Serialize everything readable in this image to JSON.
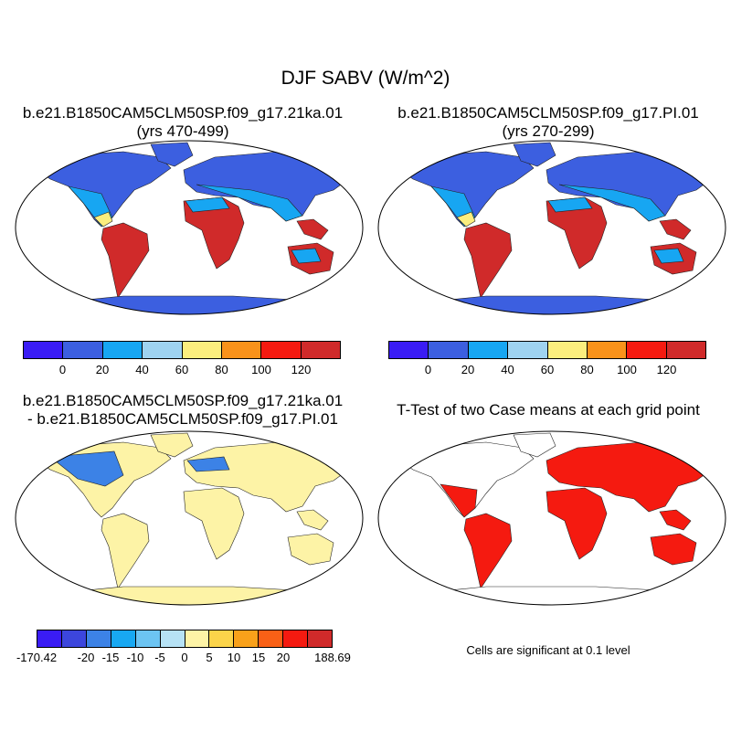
{
  "title": "DJF SABV (W/m^2)",
  "panels": {
    "top_left": {
      "line1": "b.e21.B1850CAM5CLM50SP.f09_g17.21ka.01",
      "line2": "(yrs 470-499)"
    },
    "top_right": {
      "line1": "b.e21.B1850CAM5CLM50SP.f09_g17.PI.01",
      "line2": "(yrs 270-299)"
    },
    "bottom_left": {
      "line1": "b.e21.B1850CAM5CLM50SP.f09_g17.21ka.01",
      "line2": "- b.e21.B1850CAM5CLM50SP.f09_g17.PI.01"
    },
    "bottom_right": {
      "line1": "T-Test of two Case means at each grid point"
    }
  },
  "colorbar_abs": {
    "labels": [
      "0",
      "20",
      "40",
      "60",
      "80",
      "100",
      "120"
    ],
    "colors": [
      "#3a1cf5",
      "#3c5fe0",
      "#17a6f2",
      "#9fd3f0",
      "#fbee7e",
      "#f9921a",
      "#f51a10",
      "#d02a2a"
    ]
  },
  "colorbar_diff": {
    "labels": [
      "-170.42",
      "-20",
      "-15",
      "-10",
      "-5",
      "0",
      "5",
      "10",
      "15",
      "20",
      "188.69"
    ],
    "colors": [
      "#3a1cf5",
      "#3c46dd",
      "#3c82e6",
      "#18a8f2",
      "#6cc4f2",
      "#b6e2f5",
      "#fdf3a6",
      "#fbd44a",
      "#f9a11a",
      "#f96016",
      "#f51a10",
      "#d02a2a"
    ]
  },
  "significance_note": "Cells are significant at 0.1 level",
  "map_colors": {
    "ocean": "#ffffff",
    "high_lat": "#3c5fe0",
    "mid_lat": "#17a6f2",
    "subtropic": "#fbee7e",
    "tropic": "#d02a2a",
    "diff_neutral": "#fdf3a6",
    "diff_neg": "#3c82e6",
    "signif": "#f51a10"
  }
}
